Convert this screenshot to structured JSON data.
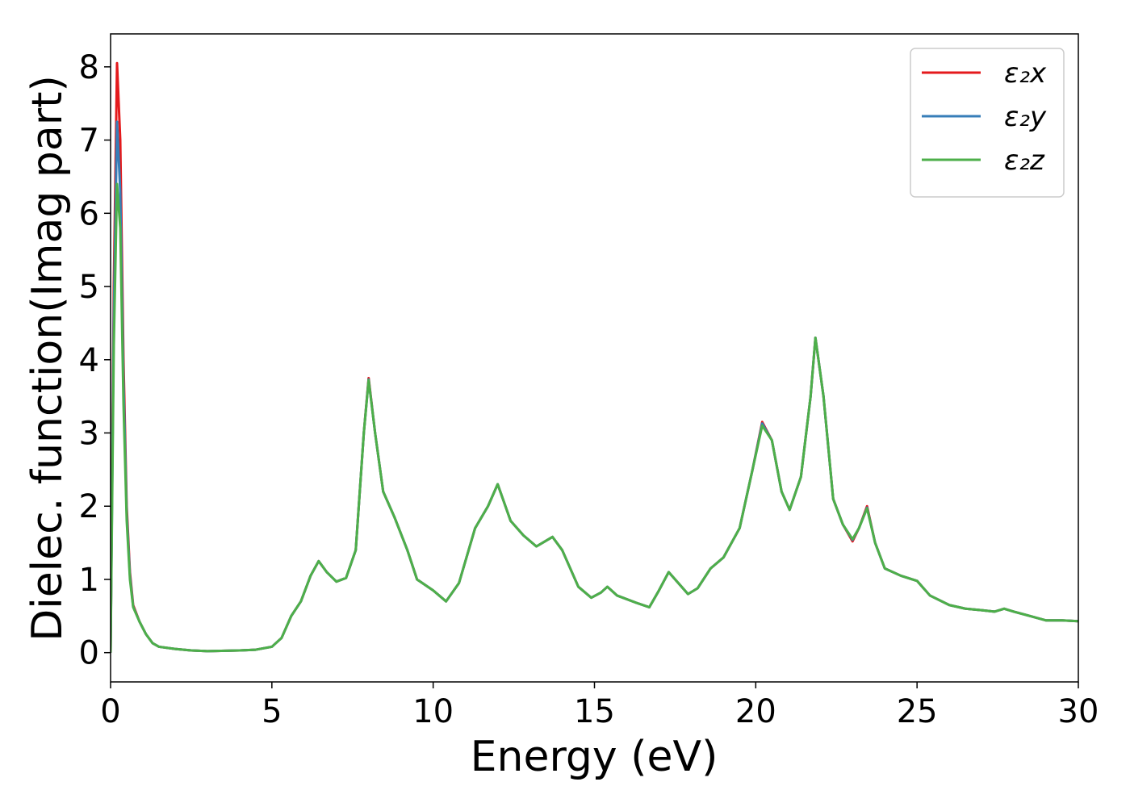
{
  "chart_data": {
    "type": "line",
    "xlabel": "Energy (eV)",
    "ylabel": "Dielec. function(Imag part)",
    "x": [
      0,
      0.1,
      0.2,
      0.3,
      0.4,
      0.5,
      0.6,
      0.7,
      0.9,
      1.1,
      1.3,
      1.5,
      2,
      2.5,
      3,
      4,
      4.5,
      5,
      5.3,
      5.6,
      5.9,
      6.2,
      6.45,
      6.7,
      7.0,
      7.3,
      7.6,
      7.85,
      8.0,
      8.2,
      8.45,
      8.8,
      9.2,
      9.5,
      10.0,
      10.4,
      10.8,
      11.3,
      11.7,
      12.0,
      12.4,
      12.8,
      13.2,
      13.7,
      14.0,
      14.5,
      14.9,
      15.2,
      15.4,
      15.7,
      16.3,
      16.7,
      17.0,
      17.3,
      17.6,
      17.9,
      18.2,
      18.6,
      19.0,
      19.5,
      19.9,
      20.2,
      20.5,
      20.8,
      21.05,
      21.4,
      21.7,
      21.85,
      22.1,
      22.4,
      22.7,
      23.0,
      23.2,
      23.45,
      23.7,
      24.0,
      24.5,
      25.0,
      25.4,
      26.0,
      26.5,
      27.0,
      27.4,
      27.7,
      28.0,
      28.5,
      29.0,
      29.5,
      30.0
    ],
    "series": [
      {
        "name": "ε₂x",
        "color": "#e41a1c",
        "values": [
          0,
          5.0,
          8.05,
          7.0,
          4.0,
          2.0,
          1.1,
          0.65,
          0.42,
          0.25,
          0.13,
          0.08,
          0.05,
          0.03,
          0.02,
          0.03,
          0.04,
          0.08,
          0.2,
          0.5,
          0.7,
          1.05,
          1.25,
          1.1,
          0.97,
          1.02,
          1.4,
          3.0,
          3.75,
          3.0,
          2.2,
          1.85,
          1.4,
          1.0,
          0.85,
          0.7,
          0.95,
          1.7,
          2.0,
          2.3,
          1.8,
          1.6,
          1.45,
          1.58,
          1.4,
          0.9,
          0.75,
          0.82,
          0.9,
          0.78,
          0.68,
          0.62,
          0.85,
          1.1,
          0.95,
          0.8,
          0.88,
          1.15,
          1.3,
          1.7,
          2.5,
          3.15,
          2.9,
          2.2,
          1.95,
          2.4,
          3.5,
          4.3,
          3.5,
          2.1,
          1.75,
          1.52,
          1.7,
          2.0,
          1.5,
          1.15,
          1.05,
          0.98,
          0.78,
          0.65,
          0.6,
          0.58,
          0.56,
          0.6,
          0.56,
          0.5,
          0.44,
          0.44,
          0.43
        ]
      },
      {
        "name": "ε₂y",
        "color": "#377eb8",
        "values": [
          0,
          4.6,
          7.25,
          6.3,
          3.7,
          1.9,
          1.05,
          0.63,
          0.42,
          0.25,
          0.13,
          0.08,
          0.05,
          0.03,
          0.02,
          0.03,
          0.04,
          0.08,
          0.2,
          0.5,
          0.7,
          1.05,
          1.25,
          1.1,
          0.97,
          1.02,
          1.4,
          3.0,
          3.73,
          3.0,
          2.2,
          1.85,
          1.4,
          1.0,
          0.85,
          0.7,
          0.95,
          1.7,
          2.0,
          2.3,
          1.8,
          1.6,
          1.45,
          1.58,
          1.4,
          0.9,
          0.75,
          0.82,
          0.9,
          0.78,
          0.68,
          0.62,
          0.85,
          1.1,
          0.95,
          0.8,
          0.88,
          1.15,
          1.3,
          1.7,
          2.5,
          3.13,
          2.9,
          2.2,
          1.95,
          2.4,
          3.5,
          4.3,
          3.5,
          2.1,
          1.75,
          1.54,
          1.7,
          1.98,
          1.5,
          1.15,
          1.05,
          0.98,
          0.78,
          0.65,
          0.6,
          0.58,
          0.56,
          0.6,
          0.56,
          0.5,
          0.44,
          0.44,
          0.43
        ]
      },
      {
        "name": "ε₂z",
        "color": "#4daf4a",
        "values": [
          0,
          4.2,
          6.4,
          5.8,
          3.4,
          1.8,
          1.0,
          0.62,
          0.42,
          0.25,
          0.13,
          0.08,
          0.05,
          0.03,
          0.02,
          0.03,
          0.04,
          0.08,
          0.2,
          0.5,
          0.7,
          1.05,
          1.25,
          1.1,
          0.97,
          1.02,
          1.4,
          3.0,
          3.72,
          3.0,
          2.2,
          1.85,
          1.4,
          1.0,
          0.85,
          0.7,
          0.95,
          1.7,
          2.0,
          2.3,
          1.8,
          1.6,
          1.45,
          1.58,
          1.4,
          0.9,
          0.75,
          0.82,
          0.9,
          0.78,
          0.68,
          0.62,
          0.85,
          1.1,
          0.95,
          0.8,
          0.88,
          1.15,
          1.3,
          1.7,
          2.5,
          3.1,
          2.9,
          2.2,
          1.95,
          2.4,
          3.5,
          4.3,
          3.5,
          2.1,
          1.75,
          1.55,
          1.7,
          1.97,
          1.5,
          1.15,
          1.05,
          0.98,
          0.78,
          0.65,
          0.6,
          0.58,
          0.56,
          0.6,
          0.56,
          0.5,
          0.44,
          0.44,
          0.43
        ]
      }
    ],
    "xlim": [
      0,
      30
    ],
    "xticks": [
      0,
      5,
      10,
      15,
      20,
      25,
      30
    ],
    "ylim": [
      -0.4,
      8.45
    ],
    "yticks": [
      0,
      1,
      2,
      3,
      4,
      5,
      6,
      7,
      8
    ],
    "grid": false,
    "legend": "upper right"
  }
}
